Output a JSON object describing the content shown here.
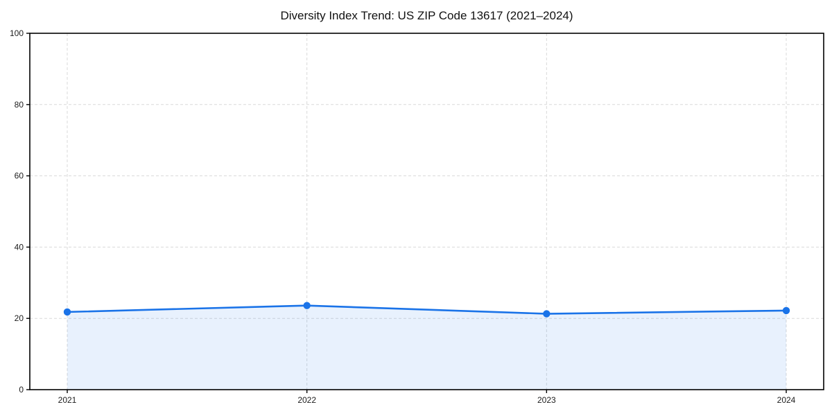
{
  "chart_data": {
    "type": "area",
    "title": "Diversity Index Trend: US ZIP Code 13617 (2021–2024)",
    "x": [
      "2021",
      "2022",
      "2023",
      "2024"
    ],
    "series": [
      {
        "name": "Diversity Index",
        "values": [
          21.8,
          23.6,
          21.3,
          22.2
        ]
      }
    ],
    "xlabel": "",
    "ylabel": "",
    "ylim": [
      0,
      100
    ],
    "yticks": [
      0,
      20,
      40,
      60,
      80,
      100
    ],
    "grid": "dashed-horizontal-and-vertical",
    "legend": "none",
    "markers": "circle",
    "colors": {
      "line": "#1a73e8",
      "marker": "#1a73e8",
      "fill": "#1a73e8",
      "fill_opacity": 0.1,
      "gridline": "#d9d9d9",
      "spine": "#000000",
      "tick_label": "#1c1c1c",
      "title": "#111111",
      "background": "#ffffff"
    }
  }
}
